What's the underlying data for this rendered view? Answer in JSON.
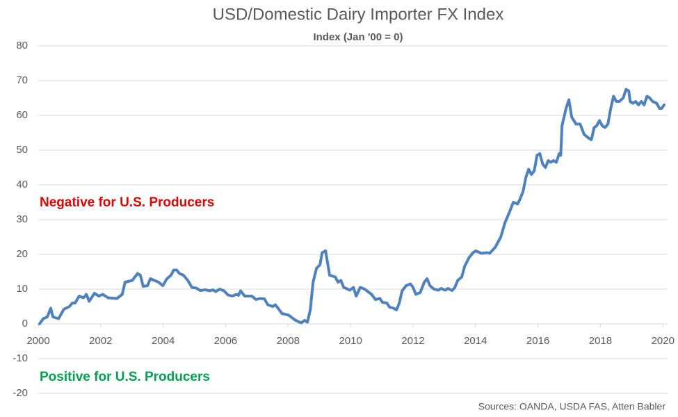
{
  "chart_data": {
    "type": "line",
    "title": "USD/Domestic Dairy Importer FX Index",
    "subtitle": "Index (Jan '00 = 0)",
    "annotations": [
      {
        "text": "Negative for U.S. Producers",
        "color": "#e00000"
      },
      {
        "text": "Positive for U.S. Producers",
        "color": "#00a050"
      }
    ],
    "source": "Sources: OANDA, USDA FAS, Atten Babler",
    "grid": true,
    "xlim": [
      2000,
      2020.15
    ],
    "xticks": [
      2000,
      2002,
      2004,
      2006,
      2008,
      2010,
      2012,
      2014,
      2016,
      2018,
      2020
    ],
    "ylim": [
      -20,
      80
    ],
    "yticks": [
      -20,
      -10,
      0,
      10,
      20,
      30,
      40,
      50,
      60,
      70,
      80
    ],
    "x": [
      2000.04,
      2000.16,
      2000.29,
      2000.4,
      2000.47,
      2000.65,
      2000.82,
      2001.0,
      2001.09,
      2001.18,
      2001.31,
      2001.45,
      2001.54,
      2001.63,
      2001.8,
      2001.94,
      2002.07,
      2002.23,
      2002.52,
      2002.69,
      2002.78,
      2002.92,
      2003.01,
      2003.18,
      2003.27,
      2003.36,
      2003.5,
      2003.59,
      2003.72,
      2003.85,
      2003.99,
      2004.12,
      2004.25,
      2004.34,
      2004.43,
      2004.52,
      2004.65,
      2004.79,
      2004.92,
      2005.06,
      2005.19,
      2005.35,
      2005.5,
      2005.59,
      2005.68,
      2005.81,
      2005.95,
      2006.08,
      2006.21,
      2006.35,
      2006.41,
      2006.48,
      2006.61,
      2006.84,
      2006.97,
      2007.1,
      2007.24,
      2007.35,
      2007.51,
      2007.59,
      2007.68,
      2007.8,
      2008.02,
      2008.24,
      2008.42,
      2008.53,
      2008.62,
      2008.71,
      2008.8,
      2008.91,
      2009.02,
      2009.09,
      2009.2,
      2009.33,
      2009.51,
      2009.6,
      2009.69,
      2009.78,
      2009.98,
      2010.09,
      2010.18,
      2010.31,
      2010.45,
      2010.67,
      2010.8,
      2010.94,
      2011.02,
      2011.16,
      2011.25,
      2011.38,
      2011.47,
      2011.56,
      2011.65,
      2011.78,
      2011.92,
      2012.0,
      2012.09,
      2012.23,
      2012.36,
      2012.45,
      2012.54,
      2012.67,
      2012.81,
      2012.9,
      2013.03,
      2013.12,
      2013.25,
      2013.34,
      2013.43,
      2013.56,
      2013.65,
      2013.79,
      2013.92,
      2014.01,
      2014.19,
      2014.37,
      2014.45,
      2014.63,
      2014.81,
      2014.94,
      2015.08,
      2015.21,
      2015.35,
      2015.43,
      2015.52,
      2015.61,
      2015.7,
      2015.79,
      2015.88,
      2015.97,
      2016.06,
      2016.15,
      2016.24,
      2016.33,
      2016.41,
      2016.5,
      2016.59,
      2016.68,
      2016.73,
      2016.77,
      2016.9,
      2016.99,
      2017.08,
      2017.22,
      2017.35,
      2017.48,
      2017.62,
      2017.71,
      2017.8,
      2017.88,
      2017.97,
      2018.06,
      2018.15,
      2018.24,
      2018.33,
      2018.42,
      2018.51,
      2018.6,
      2018.73,
      2018.82,
      2018.91,
      2018.95,
      2019.04,
      2019.13,
      2019.22,
      2019.31,
      2019.4,
      2019.49,
      2019.58,
      2019.67,
      2019.8,
      2019.89,
      2019.96,
      2020.04
    ],
    "series": [
      {
        "name": "USD/Domestic Dairy Importer FX Index",
        "color": "#4f81bd",
        "values": [
          0,
          1.5,
          2,
          4.5,
          2,
          1.5,
          4.2,
          5,
          6,
          6,
          8,
          7.5,
          8.5,
          6.5,
          8.8,
          8,
          8.5,
          7.5,
          7.3,
          8.5,
          12,
          12.3,
          12.5,
          14.5,
          14,
          10.8,
          11,
          13,
          12.5,
          12,
          11,
          13,
          14,
          15.5,
          15.5,
          14.5,
          14,
          12.5,
          10.5,
          10.3,
          9.6,
          9.8,
          9.5,
          9.8,
          9.3,
          10,
          9.5,
          8.3,
          8,
          8.5,
          8.2,
          9.5,
          8,
          8,
          7.0,
          7.3,
          7.2,
          5.5,
          5,
          5.5,
          4.5,
          3,
          2.5,
          1,
          0.3,
          1,
          0.5,
          4,
          12,
          16,
          17,
          20.5,
          21,
          14,
          13.5,
          12,
          12.5,
          10.5,
          9.7,
          10.5,
          8,
          10.5,
          10,
          8.5,
          7,
          7.3,
          6.2,
          6,
          4.8,
          4.5,
          4,
          6,
          9.5,
          11,
          11.5,
          10.5,
          8.5,
          9,
          12,
          13,
          11,
          10,
          9.7,
          10.2,
          9.7,
          10.2,
          9.6,
          10.5,
          12.5,
          13.5,
          16.5,
          19,
          20.5,
          21,
          20.3,
          20.5,
          20.3,
          22,
          25,
          29,
          32,
          35,
          34.5,
          36,
          38,
          42,
          44.5,
          43,
          44,
          48.5,
          49,
          46,
          45,
          47,
          46.5,
          47,
          46.5,
          49,
          48.5,
          57,
          62,
          64.5,
          59.5,
          57.5,
          57.5,
          54.5,
          53.5,
          53,
          56.5,
          57,
          58.5,
          57,
          56.5,
          57.5,
          62,
          65.5,
          64,
          64,
          65,
          67.5,
          67,
          64,
          63.5,
          64,
          63,
          64,
          63,
          65.5,
          65,
          64,
          63.5,
          62,
          62,
          63
        ]
      }
    ]
  }
}
